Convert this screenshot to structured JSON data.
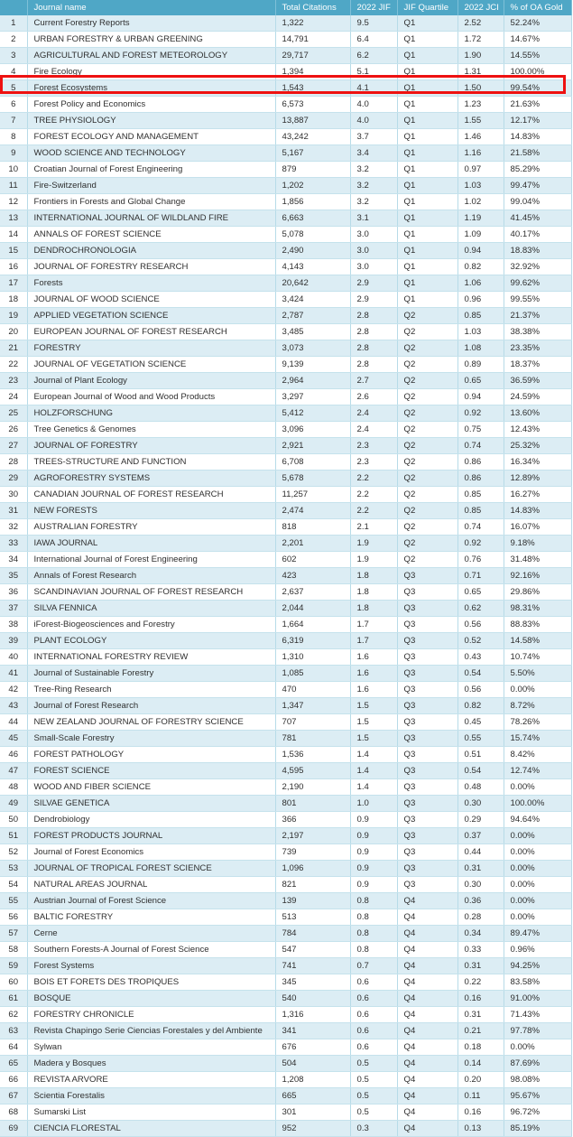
{
  "headers": [
    "",
    "Journal name",
    "Total Citations",
    "2022 JIF",
    "JIF Quartile",
    "2022 JCI",
    "% of OA Gold"
  ],
  "highlighted_rank": 5,
  "highlight_color": "#ee1111",
  "rows": [
    [
      "1",
      "Current Forestry Reports",
      "1,322",
      "9.5",
      "Q1",
      "2.52",
      "52.24%"
    ],
    [
      "2",
      "URBAN FORESTRY & URBAN GREENING",
      "14,791",
      "6.4",
      "Q1",
      "1.72",
      "14.67%"
    ],
    [
      "3",
      "AGRICULTURAL AND FOREST METEOROLOGY",
      "29,717",
      "6.2",
      "Q1",
      "1.90",
      "14.55%"
    ],
    [
      "4",
      "Fire Ecology",
      "1,394",
      "5.1",
      "Q1",
      "1.31",
      "100.00%"
    ],
    [
      "5",
      "Forest Ecosystems",
      "1,543",
      "4.1",
      "Q1",
      "1.50",
      "99.54%"
    ],
    [
      "6",
      "Forest Policy and Economics",
      "6,573",
      "4.0",
      "Q1",
      "1.23",
      "21.63%"
    ],
    [
      "7",
      "TREE PHYSIOLOGY",
      "13,887",
      "4.0",
      "Q1",
      "1.55",
      "12.17%"
    ],
    [
      "8",
      "FOREST ECOLOGY AND MANAGEMENT",
      "43,242",
      "3.7",
      "Q1",
      "1.46",
      "14.83%"
    ],
    [
      "9",
      "WOOD SCIENCE AND TECHNOLOGY",
      "5,167",
      "3.4",
      "Q1",
      "1.16",
      "21.58%"
    ],
    [
      "10",
      "Croatian Journal of Forest Engineering",
      "879",
      "3.2",
      "Q1",
      "0.97",
      "85.29%"
    ],
    [
      "11",
      "Fire-Switzerland",
      "1,202",
      "3.2",
      "Q1",
      "1.03",
      "99.47%"
    ],
    [
      "12",
      "Frontiers in Forests and Global Change",
      "1,856",
      "3.2",
      "Q1",
      "1.02",
      "99.04%"
    ],
    [
      "13",
      "INTERNATIONAL JOURNAL OF WILDLAND FIRE",
      "6,663",
      "3.1",
      "Q1",
      "1.19",
      "41.45%"
    ],
    [
      "14",
      "ANNALS OF FOREST SCIENCE",
      "5,078",
      "3.0",
      "Q1",
      "1.09",
      "40.17%"
    ],
    [
      "15",
      "DENDROCHRONOLOGIA",
      "2,490",
      "3.0",
      "Q1",
      "0.94",
      "18.83%"
    ],
    [
      "16",
      "JOURNAL OF FORESTRY RESEARCH",
      "4,143",
      "3.0",
      "Q1",
      "0.82",
      "32.92%"
    ],
    [
      "17",
      "Forests",
      "20,642",
      "2.9",
      "Q1",
      "1.06",
      "99.62%"
    ],
    [
      "18",
      "JOURNAL OF WOOD SCIENCE",
      "3,424",
      "2.9",
      "Q1",
      "0.96",
      "99.55%"
    ],
    [
      "19",
      "APPLIED VEGETATION SCIENCE",
      "2,787",
      "2.8",
      "Q2",
      "0.85",
      "21.37%"
    ],
    [
      "20",
      "EUROPEAN JOURNAL OF FOREST RESEARCH",
      "3,485",
      "2.8",
      "Q2",
      "1.03",
      "38.38%"
    ],
    [
      "21",
      "FORESTRY",
      "3,073",
      "2.8",
      "Q2",
      "1.08",
      "23.35%"
    ],
    [
      "22",
      "JOURNAL OF VEGETATION SCIENCE",
      "9,139",
      "2.8",
      "Q2",
      "0.89",
      "18.37%"
    ],
    [
      "23",
      "Journal of Plant Ecology",
      "2,964",
      "2.7",
      "Q2",
      "0.65",
      "36.59%"
    ],
    [
      "24",
      "European Journal of Wood and Wood Products",
      "3,297",
      "2.6",
      "Q2",
      "0.94",
      "24.59%"
    ],
    [
      "25",
      "HOLZFORSCHUNG",
      "5,412",
      "2.4",
      "Q2",
      "0.92",
      "13.60%"
    ],
    [
      "26",
      "Tree Genetics & Genomes",
      "3,096",
      "2.4",
      "Q2",
      "0.75",
      "12.43%"
    ],
    [
      "27",
      "JOURNAL OF FORESTRY",
      "2,921",
      "2.3",
      "Q2",
      "0.74",
      "25.32%"
    ],
    [
      "28",
      "TREES-STRUCTURE AND FUNCTION",
      "6,708",
      "2.3",
      "Q2",
      "0.86",
      "16.34%"
    ],
    [
      "29",
      "AGROFORESTRY SYSTEMS",
      "5,678",
      "2.2",
      "Q2",
      "0.86",
      "12.89%"
    ],
    [
      "30",
      "CANADIAN JOURNAL OF FOREST RESEARCH",
      "11,257",
      "2.2",
      "Q2",
      "0.85",
      "16.27%"
    ],
    [
      "31",
      "NEW FORESTS",
      "2,474",
      "2.2",
      "Q2",
      "0.85",
      "14.83%"
    ],
    [
      "32",
      "AUSTRALIAN FORESTRY",
      "818",
      "2.1",
      "Q2",
      "0.74",
      "16.07%"
    ],
    [
      "33",
      "IAWA JOURNAL",
      "2,201",
      "1.9",
      "Q2",
      "0.92",
      "9.18%"
    ],
    [
      "34",
      "International Journal of Forest Engineering",
      "602",
      "1.9",
      "Q2",
      "0.76",
      "31.48%"
    ],
    [
      "35",
      "Annals of Forest Research",
      "423",
      "1.8",
      "Q3",
      "0.71",
      "92.16%"
    ],
    [
      "36",
      "SCANDINAVIAN JOURNAL OF FOREST RESEARCH",
      "2,637",
      "1.8",
      "Q3",
      "0.65",
      "29.86%"
    ],
    [
      "37",
      "SILVA FENNICA",
      "2,044",
      "1.8",
      "Q3",
      "0.62",
      "98.31%"
    ],
    [
      "38",
      "iForest-Biogeosciences and Forestry",
      "1,664",
      "1.7",
      "Q3",
      "0.56",
      "88.83%"
    ],
    [
      "39",
      "PLANT ECOLOGY",
      "6,319",
      "1.7",
      "Q3",
      "0.52",
      "14.58%"
    ],
    [
      "40",
      "INTERNATIONAL FORESTRY REVIEW",
      "1,310",
      "1.6",
      "Q3",
      "0.43",
      "10.74%"
    ],
    [
      "41",
      "Journal of Sustainable Forestry",
      "1,085",
      "1.6",
      "Q3",
      "0.54",
      "5.50%"
    ],
    [
      "42",
      "Tree-Ring Research",
      "470",
      "1.6",
      "Q3",
      "0.56",
      "0.00%"
    ],
    [
      "43",
      "Journal of Forest Research",
      "1,347",
      "1.5",
      "Q3",
      "0.82",
      "8.72%"
    ],
    [
      "44",
      "NEW ZEALAND JOURNAL OF FORESTRY SCIENCE",
      "707",
      "1.5",
      "Q3",
      "0.45",
      "78.26%"
    ],
    [
      "45",
      "Small-Scale Forestry",
      "781",
      "1.5",
      "Q3",
      "0.55",
      "15.74%"
    ],
    [
      "46",
      "FOREST PATHOLOGY",
      "1,536",
      "1.4",
      "Q3",
      "0.51",
      "8.42%"
    ],
    [
      "47",
      "FOREST SCIENCE",
      "4,595",
      "1.4",
      "Q3",
      "0.54",
      "12.74%"
    ],
    [
      "48",
      "WOOD AND FIBER SCIENCE",
      "2,190",
      "1.4",
      "Q3",
      "0.48",
      "0.00%"
    ],
    [
      "49",
      "SILVAE GENETICA",
      "801",
      "1.0",
      "Q3",
      "0.30",
      "100.00%"
    ],
    [
      "50",
      "Dendrobiology",
      "366",
      "0.9",
      "Q3",
      "0.29",
      "94.64%"
    ],
    [
      "51",
      "FOREST PRODUCTS JOURNAL",
      "2,197",
      "0.9",
      "Q3",
      "0.37",
      "0.00%"
    ],
    [
      "52",
      "Journal of Forest Economics",
      "739",
      "0.9",
      "Q3",
      "0.44",
      "0.00%"
    ],
    [
      "53",
      "JOURNAL OF TROPICAL FOREST SCIENCE",
      "1,096",
      "0.9",
      "Q3",
      "0.31",
      "0.00%"
    ],
    [
      "54",
      "NATURAL AREAS JOURNAL",
      "821",
      "0.9",
      "Q3",
      "0.30",
      "0.00%"
    ],
    [
      "55",
      "Austrian Journal of Forest Science",
      "139",
      "0.8",
      "Q4",
      "0.36",
      "0.00%"
    ],
    [
      "56",
      "BALTIC FORESTRY",
      "513",
      "0.8",
      "Q4",
      "0.28",
      "0.00%"
    ],
    [
      "57",
      "Cerne",
      "784",
      "0.8",
      "Q4",
      "0.34",
      "89.47%"
    ],
    [
      "58",
      "Southern Forests-A Journal of Forest Science",
      "547",
      "0.8",
      "Q4",
      "0.33",
      "0.96%"
    ],
    [
      "59",
      "Forest Systems",
      "741",
      "0.7",
      "Q4",
      "0.31",
      "94.25%"
    ],
    [
      "60",
      "BOIS ET FORETS DES TROPIQUES",
      "345",
      "0.6",
      "Q4",
      "0.22",
      "83.58%"
    ],
    [
      "61",
      "BOSQUE",
      "540",
      "0.6",
      "Q4",
      "0.16",
      "91.00%"
    ],
    [
      "62",
      "FORESTRY CHRONICLE",
      "1,316",
      "0.6",
      "Q4",
      "0.31",
      "71.43%"
    ],
    [
      "63",
      "Revista Chapingo Serie Ciencias Forestales y del Ambiente",
      "341",
      "0.6",
      "Q4",
      "0.21",
      "97.78%"
    ],
    [
      "64",
      "Sylwan",
      "676",
      "0.6",
      "Q4",
      "0.18",
      "0.00%"
    ],
    [
      "65",
      "Madera y Bosques",
      "504",
      "0.5",
      "Q4",
      "0.14",
      "87.69%"
    ],
    [
      "66",
      "REVISTA ARVORE",
      "1,208",
      "0.5",
      "Q4",
      "0.20",
      "98.08%"
    ],
    [
      "67",
      "Scientia Forestalis",
      "665",
      "0.5",
      "Q4",
      "0.11",
      "95.67%"
    ],
    [
      "68",
      "Sumarski List",
      "301",
      "0.5",
      "Q4",
      "0.16",
      "96.72%"
    ],
    [
      "69",
      "CIENCIA FLORESTAL",
      "952",
      "0.3",
      "Q4",
      "0.13",
      "85.19%"
    ]
  ]
}
